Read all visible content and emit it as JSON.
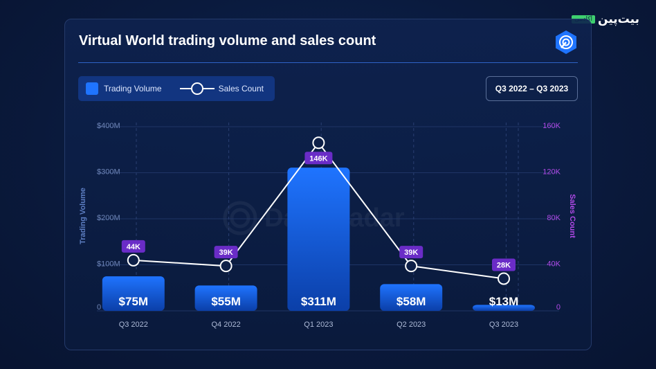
{
  "brand": {
    "name": "بیت‌پین",
    "tag": "آکادمی"
  },
  "header": {
    "title": "Virtual World trading volume and sales count",
    "period": "Q3 2022 – Q3 2023"
  },
  "legend": {
    "bar_label": "Trading Volume",
    "line_label": "Sales Count"
  },
  "watermark": "DappRadar",
  "colors": {
    "bar": "#1f74ff",
    "line": "#ffffff",
    "label_bg": "#6a2cc7",
    "right_axis": "#b14ae8"
  },
  "chart_data": {
    "type": "bar",
    "categories": [
      "Q3 2022",
      "Q4 2022",
      "Q1 2023",
      "Q2 2023",
      "Q3 2023"
    ],
    "series": [
      {
        "name": "Trading Volume",
        "type": "bar",
        "axis": "left",
        "values": [
          75,
          55,
          311,
          58,
          13
        ],
        "labels": [
          "$75M",
          "$55M",
          "$311M",
          "$58M",
          "$13M"
        ]
      },
      {
        "name": "Sales Count",
        "type": "line",
        "axis": "right",
        "values": [
          44,
          39,
          146,
          39,
          28
        ],
        "labels": [
          "44K",
          "39K",
          "146K",
          "39K",
          "28K"
        ]
      }
    ],
    "ylabel": "Trading Volume",
    "y2label": "Sales Count",
    "ylim": [
      0,
      400
    ],
    "y2lim": [
      0,
      160
    ],
    "yticks": [
      "0",
      "$100M",
      "$200M",
      "$300M",
      "$400M"
    ],
    "y2ticks": [
      "0",
      "40K",
      "80K",
      "120K",
      "160K"
    ],
    "grid": true,
    "legend_position": "top-left"
  }
}
